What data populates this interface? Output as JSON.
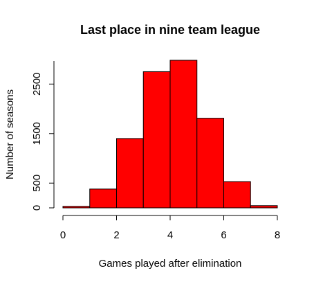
{
  "chart_data": {
    "type": "bar",
    "title": "Last place in nine team league",
    "xlabel": "Games played after elimination",
    "ylabel": "Number of seasons",
    "bin_edges": [
      0,
      1,
      2,
      3,
      4,
      5,
      6,
      7,
      8
    ],
    "values": [
      30,
      380,
      1400,
      2750,
      2980,
      1810,
      530,
      45
    ],
    "xticks": [
      0,
      2,
      4,
      6,
      8
    ],
    "yticks": [
      0,
      500,
      1500,
      2500
    ],
    "xlim": [
      0,
      8
    ],
    "ylim": [
      0,
      2980
    ],
    "grid": false,
    "colors": {
      "bar_fill": "#ff0000",
      "bar_stroke": "#000000"
    }
  }
}
